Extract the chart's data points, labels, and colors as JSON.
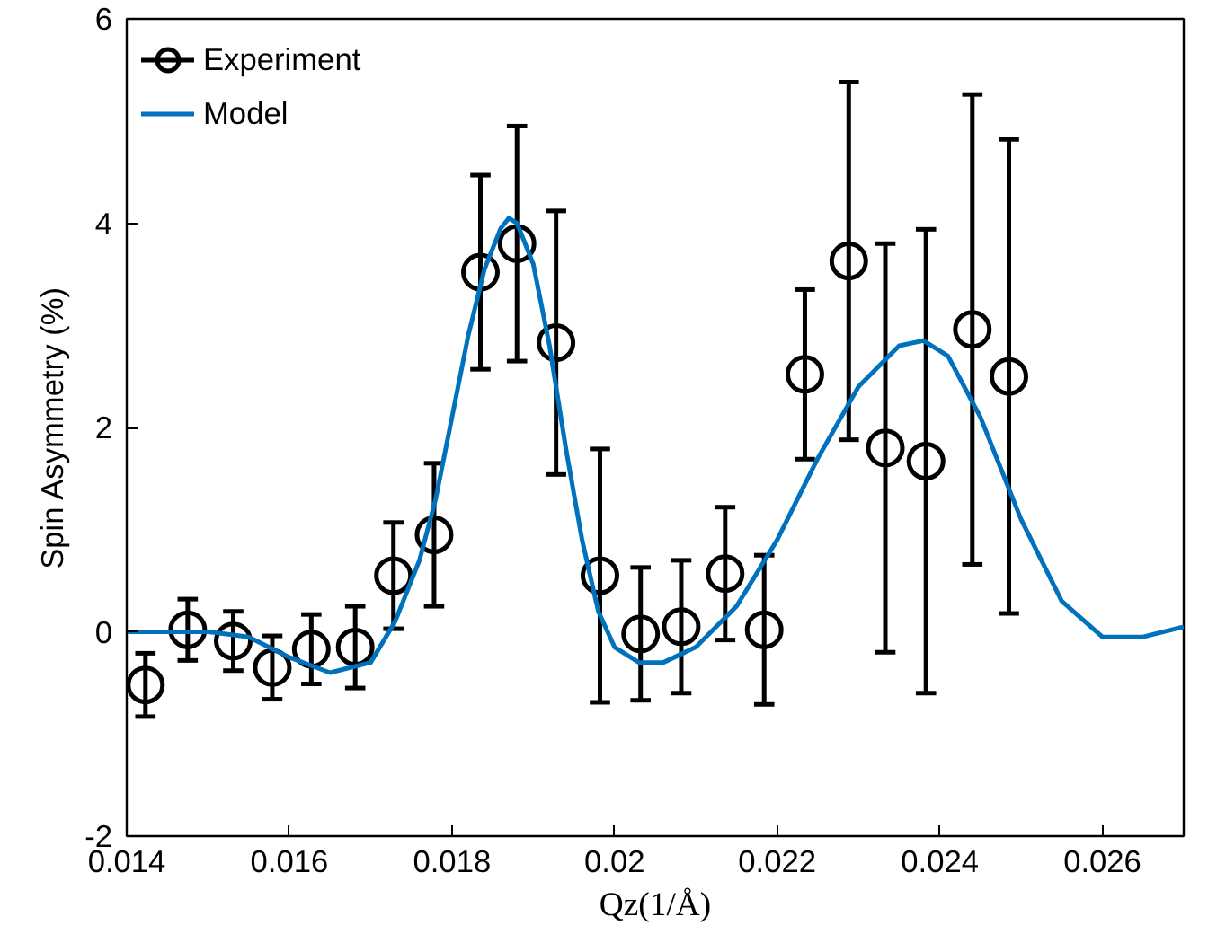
{
  "chart_data": {
    "type": "scatter",
    "xlabel": "Qz(1/Å)",
    "ylabel": "Spin Asymmetry (%)",
    "xlim": [
      0.014,
      0.027
    ],
    "xticks": [
      0.014,
      0.016,
      0.018,
      0.02,
      0.022,
      0.024,
      0.026
    ],
    "ylim": [
      -2,
      6
    ],
    "yticks": [
      -2,
      0,
      2,
      4,
      6
    ],
    "grid": false,
    "legend": "top left",
    "marker": "circle",
    "series": [
      {
        "name": "Experiment",
        "color": "#000000",
        "x": [
          0.01423,
          0.01475,
          0.01531,
          0.01579,
          0.01627,
          0.01681,
          0.01728,
          0.01778,
          0.01835,
          0.0188,
          0.01928,
          0.01982,
          0.02032,
          0.02082,
          0.02136,
          0.02184,
          0.02234,
          0.02288,
          0.02333,
          0.02383,
          0.0244,
          0.02485
        ],
        "values": [
          -0.52,
          0.02,
          -0.09,
          -0.35,
          -0.17,
          -0.15,
          0.55,
          0.95,
          3.52,
          3.8,
          2.83,
          0.55,
          -0.02,
          0.05,
          0.57,
          0.02,
          2.52,
          3.63,
          1.8,
          1.67,
          2.96,
          2.5
        ],
        "errors": [
          0.31,
          0.3,
          0.29,
          0.31,
          0.34,
          0.4,
          0.52,
          0.7,
          0.95,
          1.15,
          1.29,
          1.24,
          0.65,
          0.65,
          0.65,
          0.73,
          0.83,
          1.75,
          2.0,
          2.27,
          2.3,
          2.32
        ]
      },
      {
        "name": "Model",
        "type": "line",
        "color": "#0072bd",
        "marker": "none",
        "line_style": "solid",
        "x": [
          0.014,
          0.015,
          0.0155,
          0.016,
          0.0165,
          0.017,
          0.0173,
          0.0176,
          0.0178,
          0.018,
          0.0182,
          0.0184,
          0.0186,
          0.0187,
          0.0188,
          0.019,
          0.0192,
          0.0194,
          0.0196,
          0.0198,
          0.02,
          0.0203,
          0.0206,
          0.021,
          0.0215,
          0.022,
          0.0225,
          0.023,
          0.0235,
          0.0238,
          0.0241,
          0.0245,
          0.025,
          0.0255,
          0.026,
          0.0265,
          0.027
        ],
        "values": [
          0,
          0,
          -0.05,
          -0.25,
          -0.4,
          -0.3,
          0.1,
          0.7,
          1.3,
          2.1,
          2.9,
          3.55,
          3.95,
          4.05,
          4.0,
          3.6,
          2.8,
          1.8,
          0.9,
          0.2,
          -0.15,
          -0.3,
          -0.3,
          -0.15,
          0.25,
          0.9,
          1.7,
          2.4,
          2.8,
          2.85,
          2.7,
          2.1,
          1.1,
          0.3,
          -0.05,
          -0.05,
          0.05
        ]
      }
    ]
  }
}
